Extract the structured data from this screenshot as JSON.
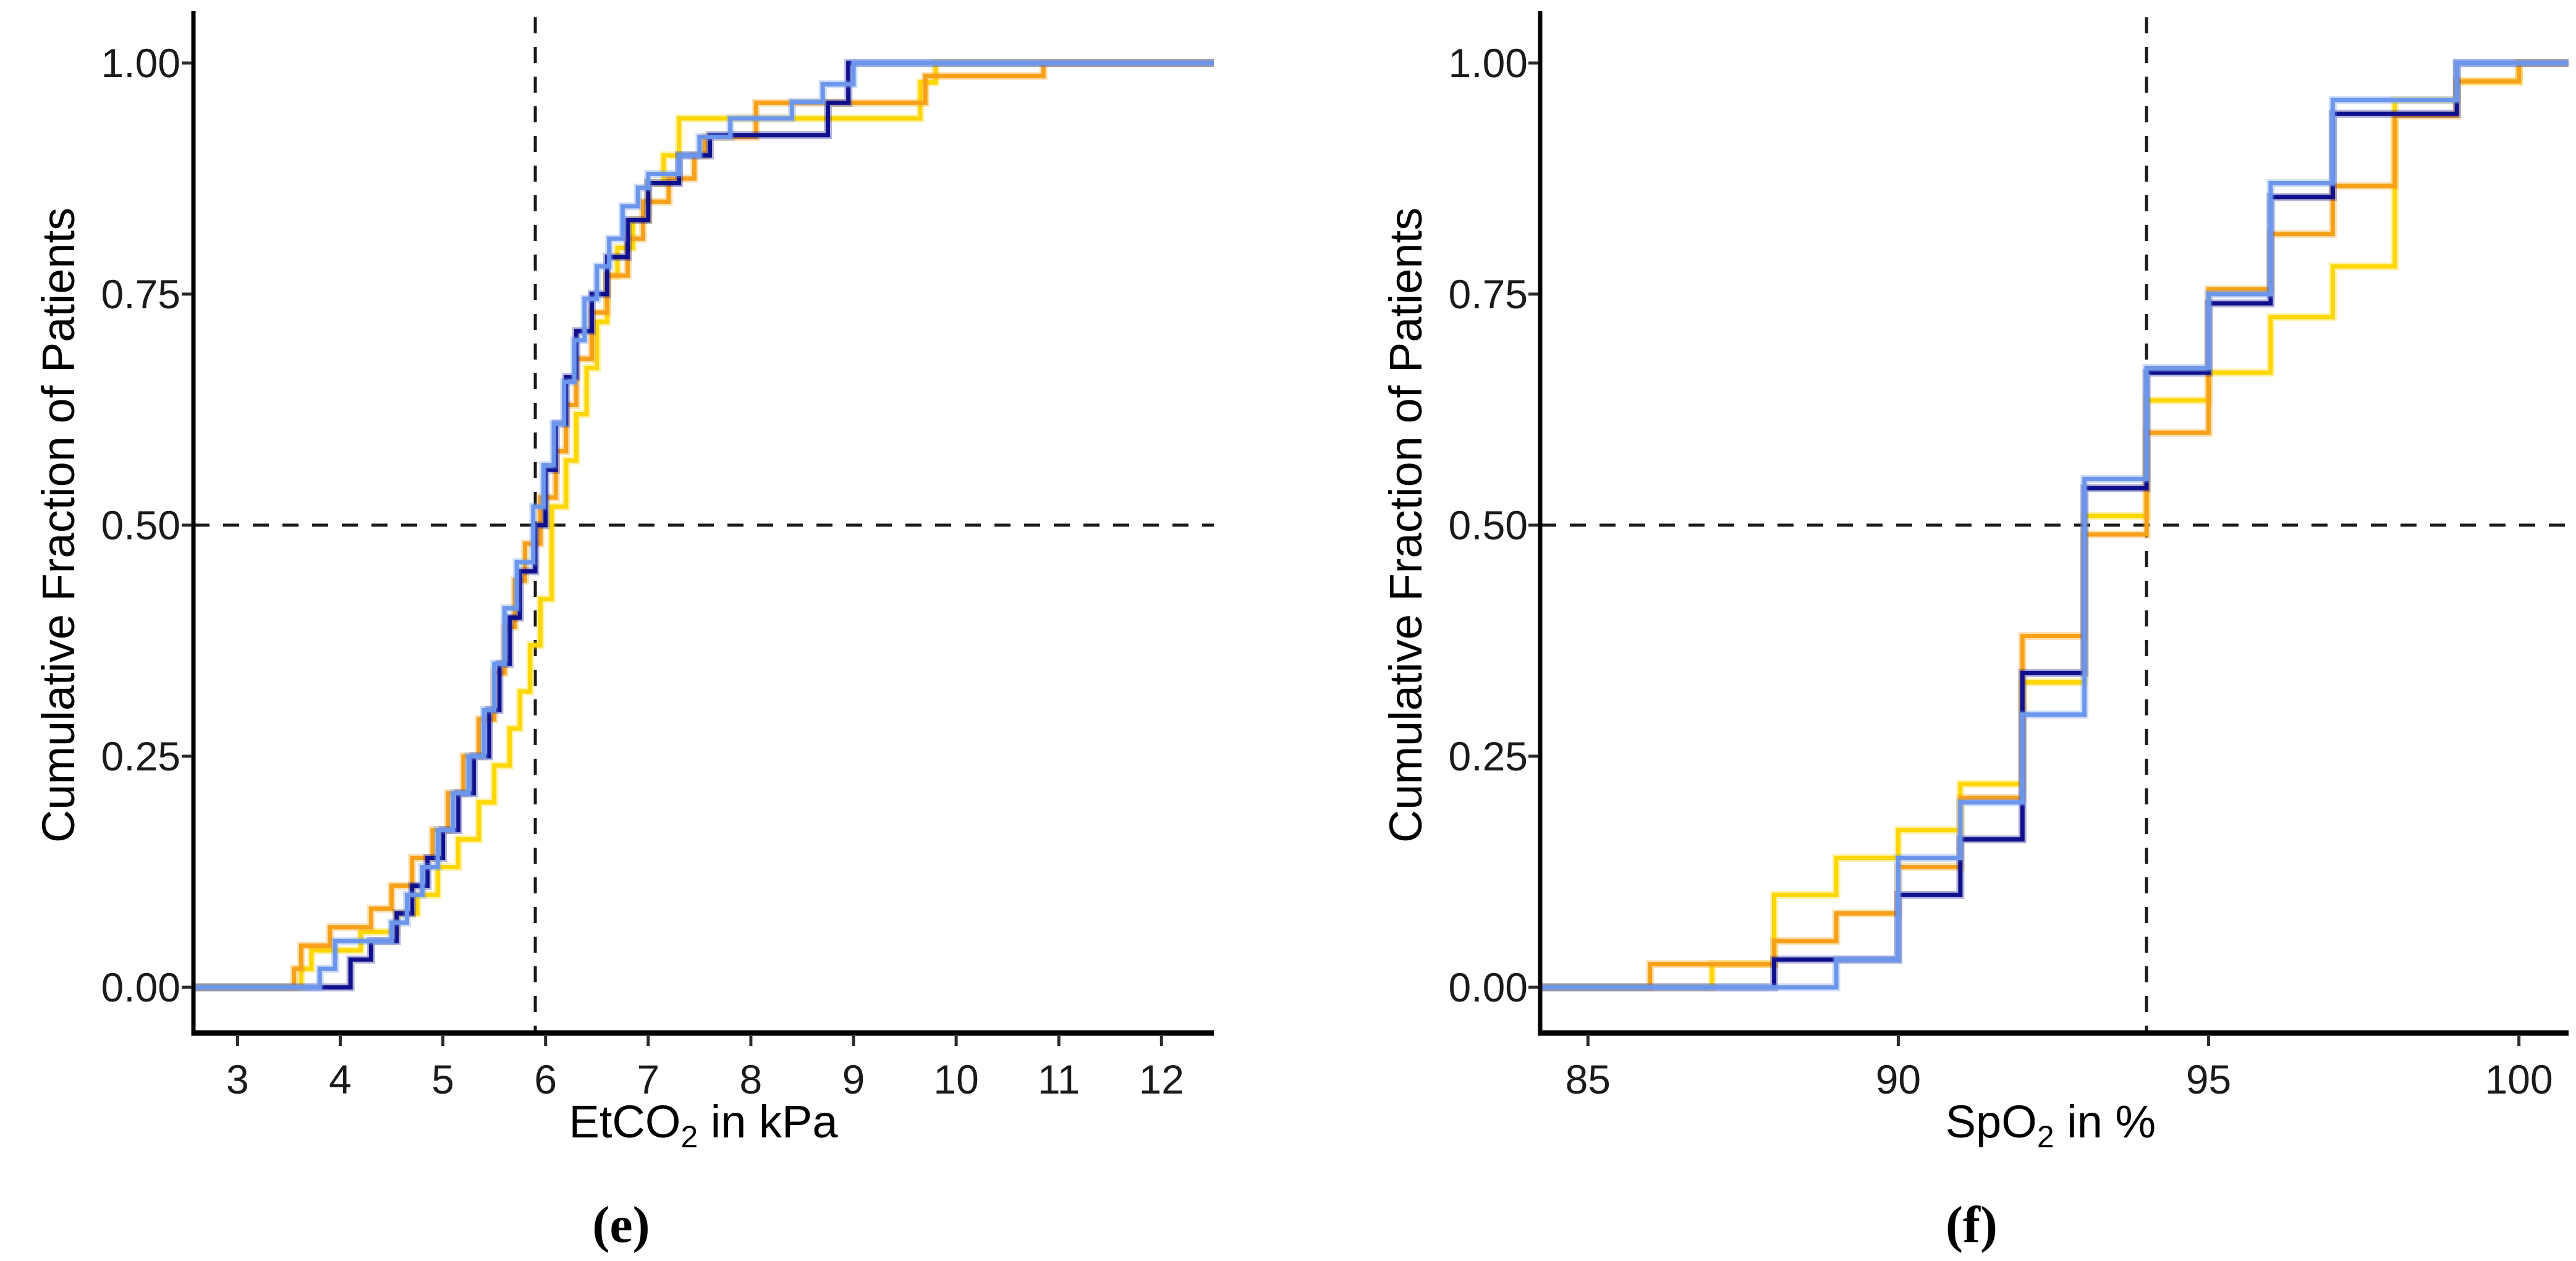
{
  "figure": {
    "background": "#ffffff",
    "axis_color": "#000000",
    "tick_color": "#2b2b2b",
    "label_color": "#1a1a1a",
    "reference_line_color": "#1a1a1a"
  },
  "chart_data": [
    {
      "id": "e",
      "type": "step-ecdf",
      "caption": "(e)",
      "x_label": {
        "pre": "EtCO",
        "sub": "2",
        "post": " in kPa"
      },
      "y_label": "Cumulative Fraction of Patients",
      "xlim": [
        2.57,
        12.51
      ],
      "ylim": [
        0,
        1
      ],
      "x_ticks": [
        3,
        4,
        5,
        6,
        7,
        8,
        9,
        10,
        11,
        12
      ],
      "y_ticks": [
        1.0,
        0.75,
        0.5,
        0.25,
        0.0
      ],
      "y_tick_labels": [
        "1.00",
        "0.75",
        "0.50",
        "0.25",
        "0.00"
      ],
      "ref_x": 5.9,
      "ref_y": 0.5,
      "grid": false,
      "legend": "none",
      "series": [
        {
          "name": "yellow-series",
          "color": "#FFD700",
          "points": [
            [
              3.62,
              0.02
            ],
            [
              3.72,
              0.04
            ],
            [
              4.2,
              0.06
            ],
            [
              4.55,
              0.08
            ],
            [
              4.75,
              0.1
            ],
            [
              4.95,
              0.13
            ],
            [
              5.15,
              0.16
            ],
            [
              5.35,
              0.2
            ],
            [
              5.5,
              0.24
            ],
            [
              5.65,
              0.28
            ],
            [
              5.75,
              0.32
            ],
            [
              5.85,
              0.37
            ],
            [
              5.95,
              0.42
            ],
            [
              6.06,
              0.52
            ],
            [
              6.2,
              0.57
            ],
            [
              6.3,
              0.62
            ],
            [
              6.4,
              0.67
            ],
            [
              6.5,
              0.72
            ],
            [
              6.6,
              0.77
            ],
            [
              6.7,
              0.8
            ],
            [
              6.85,
              0.83
            ],
            [
              7.0,
              0.87
            ],
            [
              7.15,
              0.9
            ],
            [
              7.3,
              0.94
            ],
            [
              9.65,
              0.979
            ],
            [
              9.8,
              1.0
            ]
          ]
        },
        {
          "name": "orange-series",
          "color": "#F7A11A",
          "points": [
            [
              3.55,
              0.02
            ],
            [
              3.62,
              0.045
            ],
            [
              3.9,
              0.065
            ],
            [
              4.3,
              0.085
            ],
            [
              4.5,
              0.11
            ],
            [
              4.7,
              0.14
            ],
            [
              4.9,
              0.17
            ],
            [
              5.05,
              0.21
            ],
            [
              5.2,
              0.25
            ],
            [
              5.35,
              0.29
            ],
            [
              5.5,
              0.34
            ],
            [
              5.6,
              0.39
            ],
            [
              5.7,
              0.44
            ],
            [
              5.8,
              0.48
            ],
            [
              5.95,
              0.53
            ],
            [
              6.1,
              0.58
            ],
            [
              6.2,
              0.63
            ],
            [
              6.3,
              0.68
            ],
            [
              6.45,
              0.73
            ],
            [
              6.6,
              0.77
            ],
            [
              6.8,
              0.81
            ],
            [
              6.95,
              0.85
            ],
            [
              7.2,
              0.875
            ],
            [
              7.45,
              0.9
            ],
            [
              7.55,
              0.92
            ],
            [
              8.05,
              0.957
            ],
            [
              9.7,
              0.986
            ],
            [
              10.85,
              1.0
            ]
          ]
        },
        {
          "name": "navy-series",
          "color": "#10108E",
          "points": [
            [
              4.1,
              0.03
            ],
            [
              4.3,
              0.05
            ],
            [
              4.55,
              0.08
            ],
            [
              4.7,
              0.11
            ],
            [
              4.85,
              0.14
            ],
            [
              5.0,
              0.17
            ],
            [
              5.15,
              0.21
            ],
            [
              5.3,
              0.25
            ],
            [
              5.45,
              0.3
            ],
            [
              5.55,
              0.35
            ],
            [
              5.65,
              0.4
            ],
            [
              5.75,
              0.45
            ],
            [
              5.9,
              0.5
            ],
            [
              6.0,
              0.56
            ],
            [
              6.1,
              0.61
            ],
            [
              6.2,
              0.66
            ],
            [
              6.3,
              0.71
            ],
            [
              6.45,
              0.75
            ],
            [
              6.6,
              0.79
            ],
            [
              6.8,
              0.83
            ],
            [
              7.0,
              0.87
            ],
            [
              7.3,
              0.9
            ],
            [
              7.6,
              0.922
            ],
            [
              8.75,
              0.957
            ],
            [
              8.95,
              1.0
            ]
          ]
        },
        {
          "name": "light-blue-series",
          "color": "#6B96EC",
          "points": [
            [
              3.8,
              0.02
            ],
            [
              3.95,
              0.05
            ],
            [
              4.5,
              0.07
            ],
            [
              4.65,
              0.1
            ],
            [
              4.8,
              0.13
            ],
            [
              4.95,
              0.17
            ],
            [
              5.1,
              0.21
            ],
            [
              5.25,
              0.25
            ],
            [
              5.4,
              0.3
            ],
            [
              5.5,
              0.35
            ],
            [
              5.6,
              0.41
            ],
            [
              5.72,
              0.46
            ],
            [
              5.88,
              0.52
            ],
            [
              5.98,
              0.565
            ],
            [
              6.08,
              0.61
            ],
            [
              6.18,
              0.655
            ],
            [
              6.28,
              0.7
            ],
            [
              6.38,
              0.745
            ],
            [
              6.5,
              0.78
            ],
            [
              6.62,
              0.81
            ],
            [
              6.75,
              0.845
            ],
            [
              6.9,
              0.865
            ],
            [
              7.0,
              0.88
            ],
            [
              7.3,
              0.9
            ],
            [
              7.5,
              0.92
            ],
            [
              7.8,
              0.94
            ],
            [
              8.4,
              0.958
            ],
            [
              8.7,
              0.977
            ],
            [
              9.0,
              1.0
            ]
          ]
        }
      ]
    },
    {
      "id": "f",
      "type": "step-ecdf",
      "caption": "(f)",
      "x_label": {
        "pre": "SpO",
        "sub": "2",
        "post": " in %"
      },
      "y_label": "Cumulative Fraction of Patients",
      "xlim": [
        84.23,
        100.8
      ],
      "ylim": [
        0,
        1
      ],
      "x_ticks": [
        85,
        90,
        95,
        100
      ],
      "y_ticks": [
        1.0,
        0.75,
        0.5,
        0.25,
        0.0
      ],
      "y_tick_labels": [
        "1.00",
        "0.75",
        "0.50",
        "0.25",
        "0.00"
      ],
      "ref_x": 94,
      "ref_y": 0.5,
      "grid": false,
      "legend": "none",
      "series": [
        {
          "name": "yellow-series",
          "color": "#FFD700",
          "points": [
            [
              87,
              0.025
            ],
            [
              88,
              0.1
            ],
            [
              89,
              0.14
            ],
            [
              90,
              0.17
            ],
            [
              91,
              0.22
            ],
            [
              92,
              0.33
            ],
            [
              93,
              0.51
            ],
            [
              94,
              0.635
            ],
            [
              95,
              0.665
            ],
            [
              96,
              0.725
            ],
            [
              97,
              0.78
            ],
            [
              98,
              0.96
            ],
            [
              99,
              0.98
            ],
            [
              100,
              1.0
            ]
          ]
        },
        {
          "name": "orange-series",
          "color": "#F7A11A",
          "points": [
            [
              86,
              0.025
            ],
            [
              88,
              0.05
            ],
            [
              89,
              0.08
            ],
            [
              90,
              0.13
            ],
            [
              91,
              0.205
            ],
            [
              92,
              0.38
            ],
            [
              93,
              0.49
            ],
            [
              94,
              0.6
            ],
            [
              95,
              0.755
            ],
            [
              96,
              0.815
            ],
            [
              97,
              0.867
            ],
            [
              98,
              0.943
            ],
            [
              99,
              0.98
            ],
            [
              100,
              1.0
            ]
          ]
        },
        {
          "name": "navy-series",
          "color": "#10108E",
          "points": [
            [
              88,
              0.03
            ],
            [
              90,
              0.1
            ],
            [
              91,
              0.16
            ],
            [
              92,
              0.34
            ],
            [
              93,
              0.54
            ],
            [
              94,
              0.665
            ],
            [
              95,
              0.74
            ],
            [
              96,
              0.855
            ],
            [
              97,
              0.945
            ],
            [
              99,
              1.0
            ]
          ]
        },
        {
          "name": "light-blue-series",
          "color": "#6B96EC",
          "points": [
            [
              89,
              0.03
            ],
            [
              90,
              0.14
            ],
            [
              91,
              0.2
            ],
            [
              92,
              0.295
            ],
            [
              93,
              0.55
            ],
            [
              94,
              0.67
            ],
            [
              95,
              0.75
            ],
            [
              96,
              0.87
            ],
            [
              97,
              0.96
            ],
            [
              99,
              1.0
            ]
          ]
        }
      ]
    }
  ]
}
